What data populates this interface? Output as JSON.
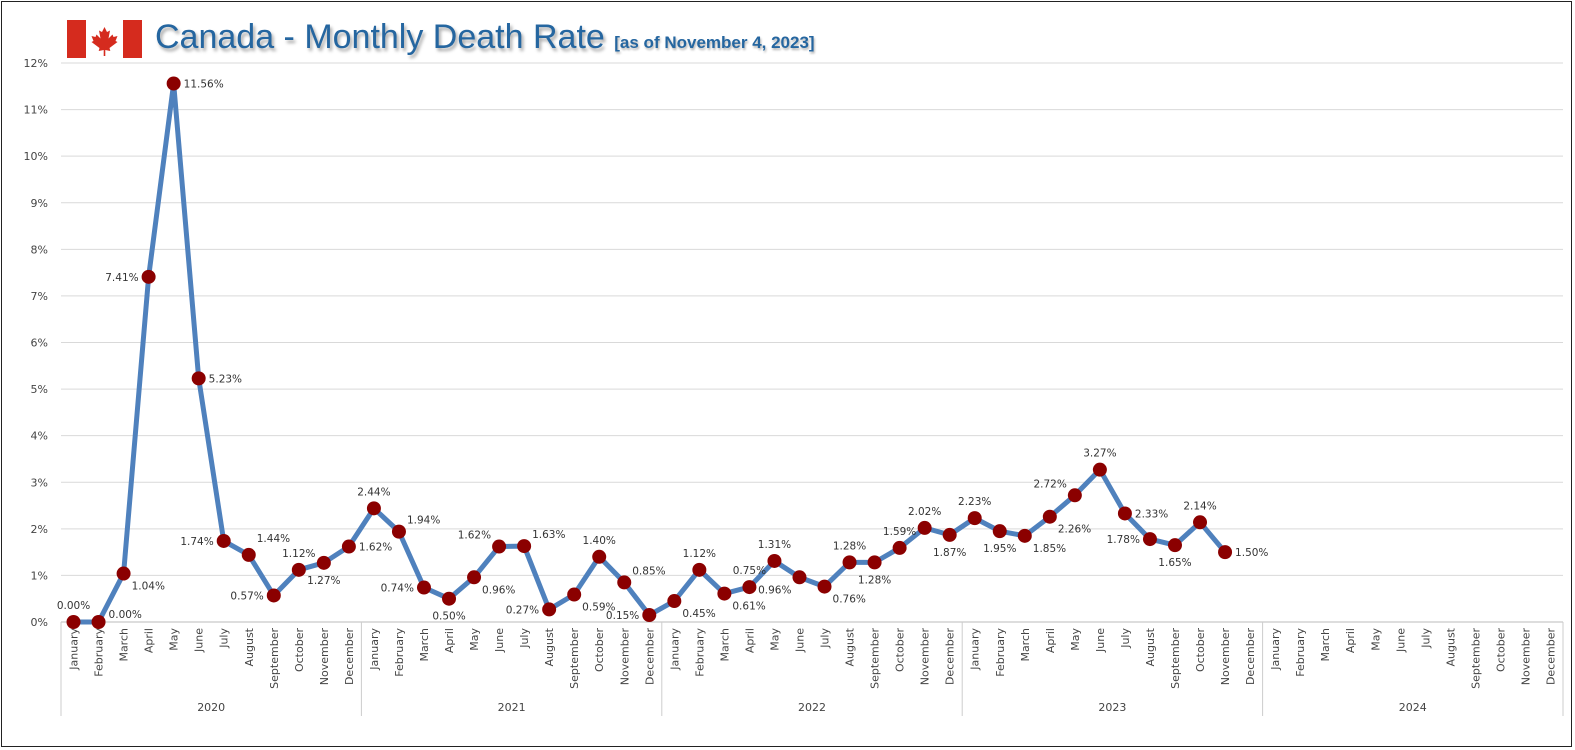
{
  "chart_data": {
    "type": "line",
    "title": "Canada - Monthly Death Rate",
    "subtitle": "[as of November 4, 2023]",
    "xlabel": "",
    "ylabel": "",
    "ylim": [
      0,
      12
    ],
    "yticks": [
      "0%",
      "1%",
      "2%",
      "3%",
      "4%",
      "5%",
      "6%",
      "7%",
      "8%",
      "9%",
      "10%",
      "11%",
      "12%"
    ],
    "grid": true,
    "years": [
      "2020",
      "2021",
      "2022",
      "2023",
      "2024"
    ],
    "months": [
      "January",
      "February",
      "March",
      "April",
      "May",
      "June",
      "July",
      "August",
      "September",
      "October",
      "November",
      "December"
    ],
    "values": [
      0.0,
      0.0,
      1.04,
      7.41,
      11.56,
      5.23,
      1.74,
      1.44,
      0.57,
      1.12,
      1.27,
      1.62,
      2.44,
      1.94,
      0.74,
      0.5,
      0.96,
      1.62,
      1.63,
      0.27,
      0.59,
      1.4,
      0.85,
      0.15,
      0.45,
      1.12,
      0.61,
      0.75,
      1.31,
      0.96,
      0.76,
      1.28,
      1.28,
      1.59,
      2.02,
      1.87,
      2.23,
      1.95,
      1.85,
      2.26,
      2.72,
      3.27,
      2.33,
      1.78,
      1.65,
      2.14,
      1.5
    ],
    "data_labels": [
      "0.00%",
      "0.00%",
      "1.04%",
      "7.41%",
      "11.56%",
      "5.23%",
      "1.74%",
      "1.44%",
      "0.57%",
      "1.12%",
      "1.27%",
      "1.62%",
      "2.44%",
      "1.94%",
      "0.74%",
      "0.50%",
      "0.96%",
      "1.62%",
      "1.63%",
      "0.27%",
      "0.59%",
      "1.40%",
      "0.85%",
      "0.15%",
      "0.45%",
      "1.12%",
      "0.61%",
      "0.75%",
      "1.31%",
      "0.96%",
      "0.76%",
      "1.28%",
      "1.28%",
      "1.59%",
      "2.02%",
      "1.87%",
      "2.23%",
      "1.95%",
      "1.85%",
      "2.26%",
      "2.72%",
      "3.27%",
      "2.33%",
      "1.78%",
      "1.65%",
      "2.14%",
      "1.50%"
    ],
    "line_color": "#4f81bd",
    "marker_color": "#8b0000"
  },
  "flag": {
    "red": "#d52b1e",
    "icon": "canada-flag-icon"
  }
}
